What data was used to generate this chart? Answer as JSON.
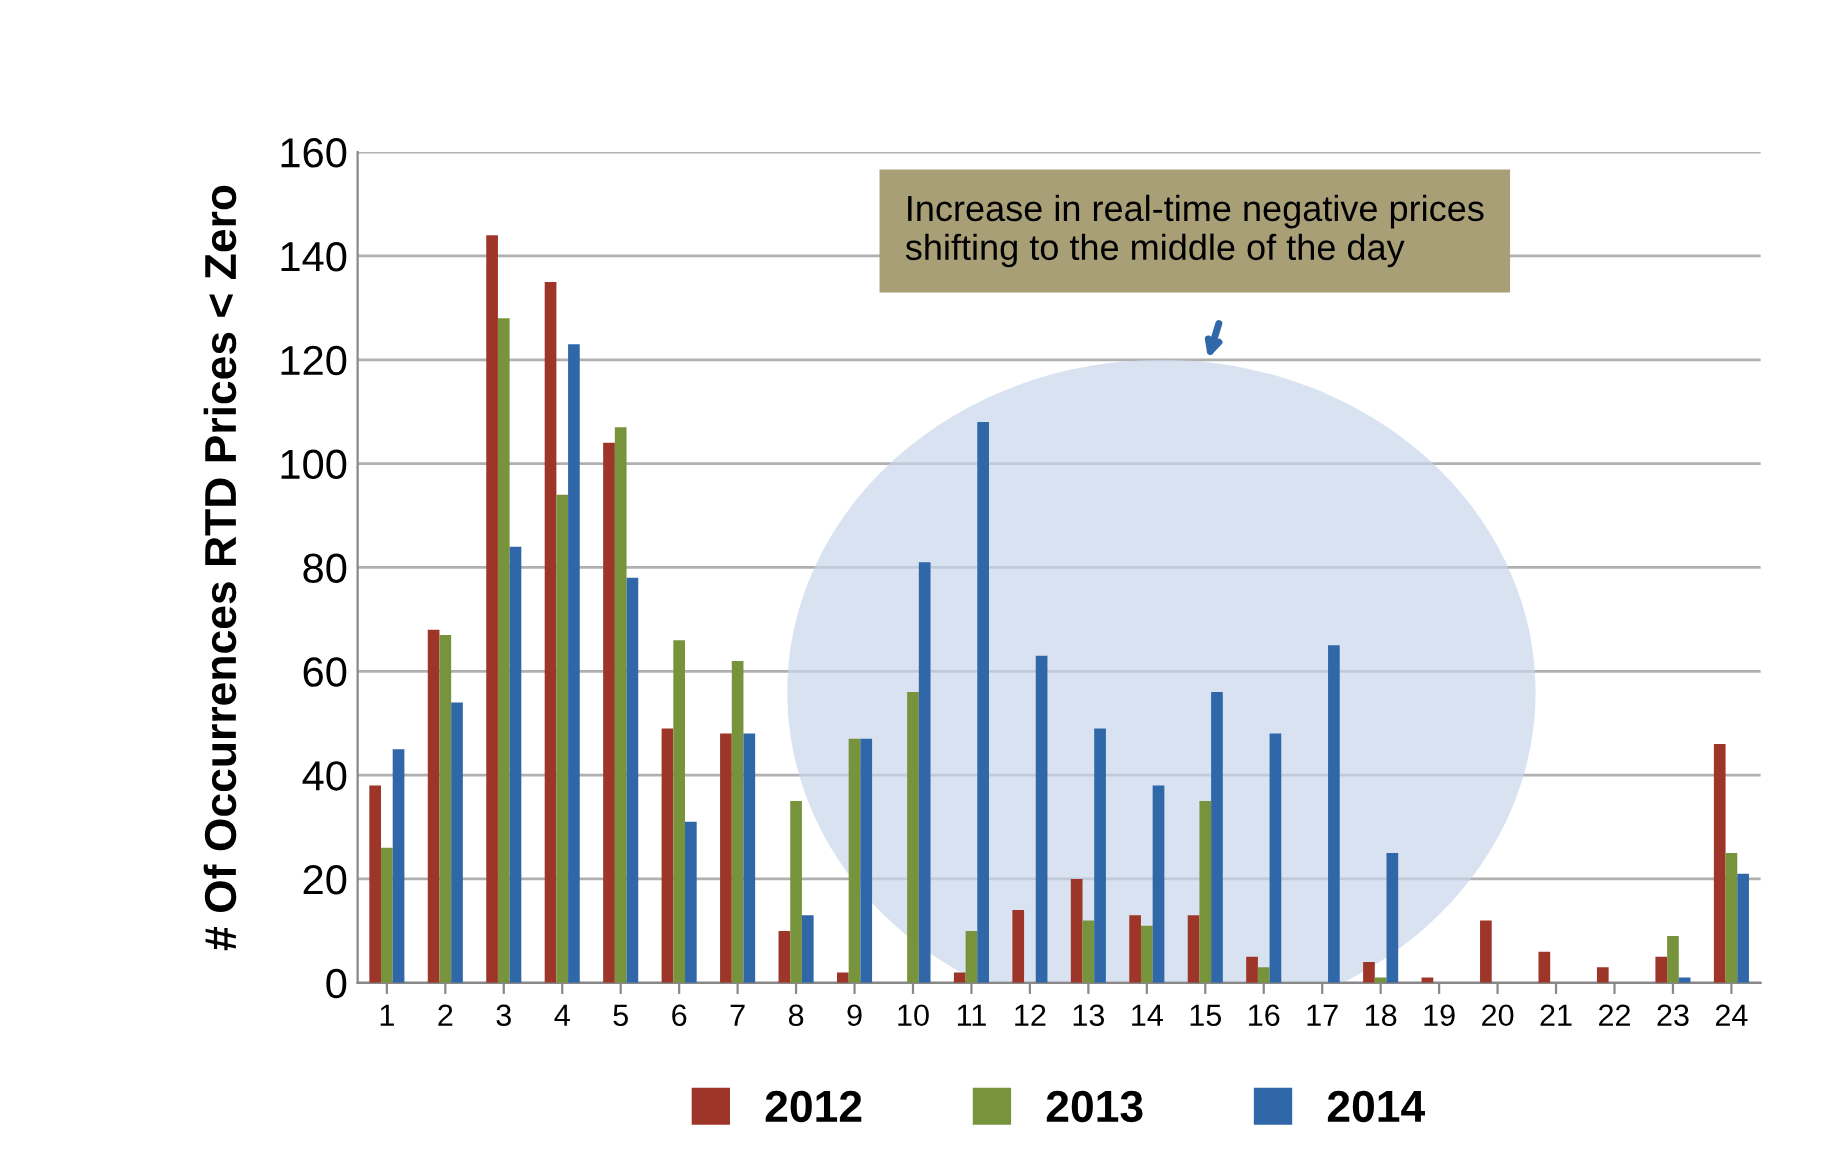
{
  "chart_data": {
    "type": "bar",
    "ylabel": "# Of Occurrences RTD Prices < Zero",
    "categories": [
      "1",
      "2",
      "3",
      "4",
      "5",
      "6",
      "7",
      "8",
      "9",
      "10",
      "11",
      "12",
      "13",
      "14",
      "15",
      "16",
      "17",
      "18",
      "19",
      "20",
      "21",
      "22",
      "23",
      "24"
    ],
    "series": [
      {
        "name": "2012",
        "color": "#9e3529",
        "values": [
          38,
          68,
          144,
          135,
          104,
          49,
          48,
          10,
          2,
          0,
          2,
          14,
          20,
          13,
          13,
          5,
          0,
          4,
          1,
          12,
          6,
          3,
          5,
          46
        ]
      },
      {
        "name": "2013",
        "color": "#77933c",
        "values": [
          26,
          67,
          128,
          94,
          107,
          66,
          62,
          35,
          47,
          56,
          10,
          0,
          12,
          11,
          35,
          3,
          0,
          1,
          0,
          0,
          0,
          0,
          9,
          25
        ]
      },
      {
        "name": "2014",
        "color": "#2f67a8",
        "values": [
          45,
          54,
          84,
          123,
          78,
          31,
          48,
          13,
          47,
          81,
          108,
          63,
          49,
          38,
          56,
          48,
          65,
          25,
          0,
          0,
          0,
          0,
          1,
          21
        ]
      }
    ],
    "ylim": [
      0,
      160
    ],
    "yticks": [
      0,
      20,
      40,
      60,
      80,
      100,
      120,
      140,
      160
    ],
    "grid": "y",
    "legend": "bottom",
    "annotations": [
      "Increase in real-time negative prices\nshifting to the middle of the day"
    ]
  }
}
